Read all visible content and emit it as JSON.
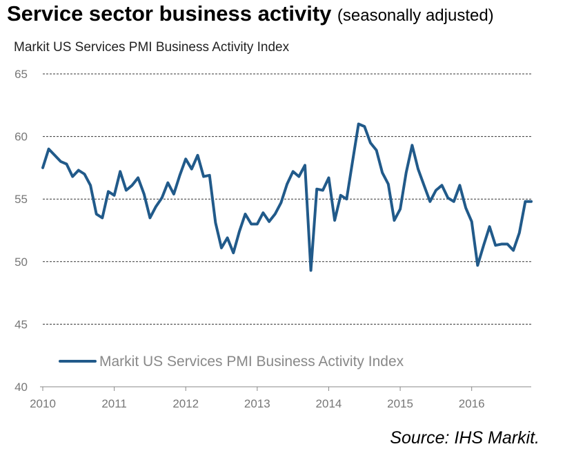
{
  "header": {
    "title": "Service sector business activity",
    "title_note": "(seasonally adjusted)",
    "subtitle": "Markit US Services PMI Business Activity Index"
  },
  "source": "Source: IHS Markit.",
  "colors": {
    "line": "#215a8a",
    "grid": "#333333",
    "axis_text": "#777777"
  },
  "chart_data": {
    "type": "line",
    "title": "Service sector business activity",
    "subtitle": "Markit US Services PMI Business Activity Index",
    "xlabel": "",
    "ylabel": "",
    "ylim": [
      40,
      65
    ],
    "yticks": [
      40,
      45,
      50,
      55,
      60,
      65
    ],
    "xlim": [
      2010.0,
      2016.833
    ],
    "xticks": [
      "2010",
      "2011",
      "2012",
      "2013",
      "2014",
      "2015",
      "2016"
    ],
    "grid": "horizontal dashed",
    "legend": "bottom-left",
    "series": [
      {
        "name": "Markit US Services PMI Business Activity Index",
        "x": [
          2010.0,
          2010.083,
          2010.167,
          2010.25,
          2010.333,
          2010.417,
          2010.5,
          2010.583,
          2010.667,
          2010.75,
          2010.833,
          2010.917,
          2011.0,
          2011.083,
          2011.167,
          2011.25,
          2011.333,
          2011.417,
          2011.5,
          2011.583,
          2011.667,
          2011.75,
          2011.833,
          2011.917,
          2012.0,
          2012.083,
          2012.167,
          2012.25,
          2012.333,
          2012.417,
          2012.5,
          2012.583,
          2012.667,
          2012.75,
          2012.833,
          2012.917,
          2013.0,
          2013.083,
          2013.167,
          2013.25,
          2013.333,
          2013.417,
          2013.5,
          2013.583,
          2013.667,
          2013.75,
          2013.833,
          2013.917,
          2014.0,
          2014.083,
          2014.167,
          2014.25,
          2014.333,
          2014.417,
          2014.5,
          2014.583,
          2014.667,
          2014.75,
          2014.833,
          2014.917,
          2015.0,
          2015.083,
          2015.167,
          2015.25,
          2015.333,
          2015.417,
          2015.5,
          2015.583,
          2015.667,
          2015.75,
          2015.833,
          2015.917,
          2016.0,
          2016.083,
          2016.167,
          2016.25,
          2016.333,
          2016.417,
          2016.5,
          2016.583,
          2016.667,
          2016.75,
          2016.833
        ],
        "values": [
          57.5,
          59.0,
          58.5,
          58.0,
          57.8,
          56.8,
          57.3,
          57.0,
          56.1,
          53.8,
          53.5,
          55.6,
          55.3,
          57.2,
          55.7,
          56.1,
          56.7,
          55.4,
          53.5,
          54.4,
          55.1,
          56.3,
          55.4,
          56.9,
          58.2,
          57.4,
          58.5,
          56.8,
          56.9,
          53.1,
          51.1,
          51.9,
          50.7,
          52.4,
          53.8,
          53.0,
          53.0,
          53.9,
          53.2,
          53.8,
          54.7,
          56.2,
          57.2,
          56.8,
          57.7,
          49.3,
          55.8,
          55.7,
          56.7,
          53.3,
          55.3,
          55.0,
          58.0,
          61.0,
          60.8,
          59.5,
          58.9,
          57.1,
          56.2,
          53.3,
          54.2,
          57.1,
          59.3,
          57.4,
          56.1,
          54.8,
          55.7,
          56.1,
          55.1,
          54.8,
          56.1,
          54.3,
          53.2,
          49.7,
          51.3,
          52.8,
          51.3,
          51.4,
          51.4,
          50.9,
          52.3,
          54.8,
          54.8
        ]
      }
    ]
  }
}
